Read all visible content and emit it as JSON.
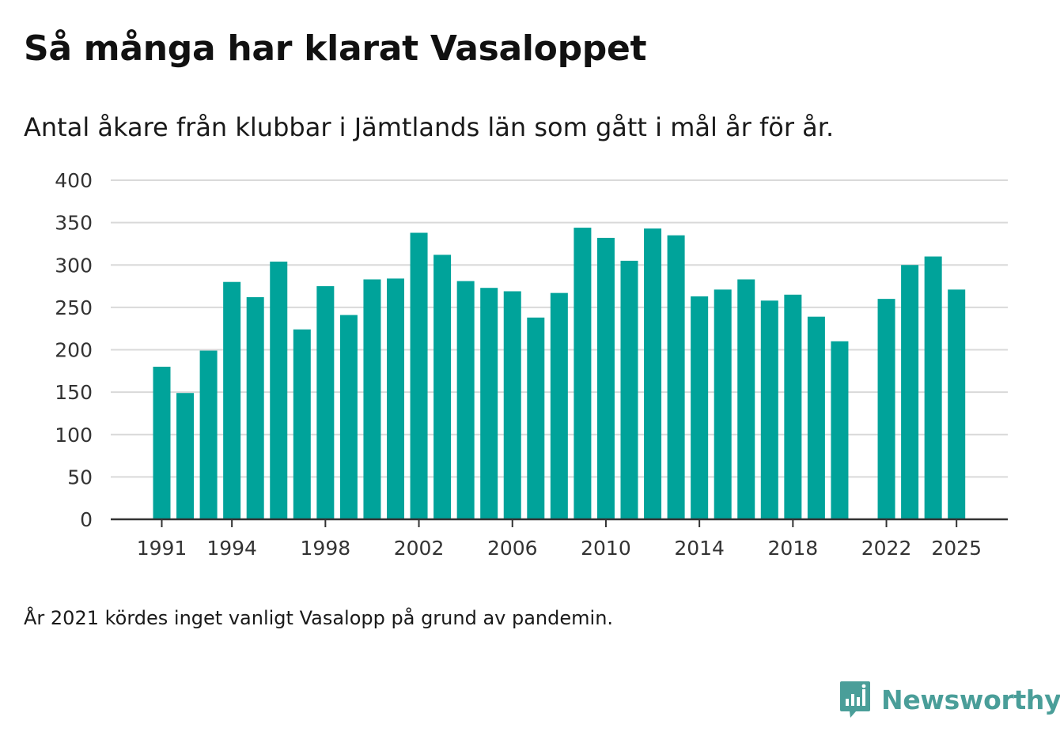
{
  "title": "Så många har klarat Vasaloppet",
  "subtitle": "Antal åkare från klubbar i Jämtlands län som gått i mål år för år.",
  "note": "År 2021 kördes inget vanligt Vasalopp på grund av pandemin.",
  "brand": {
    "name": "Newsworthy",
    "icon": "newsworthy-logo-icon",
    "color": "#4a9e99"
  },
  "colors": {
    "bar": "#00a39a",
    "grid": "#d9d9d9",
    "axis": "#333333",
    "tick_text": "#333333"
  },
  "chart_data": {
    "type": "bar",
    "title": "Så många har klarat Vasaloppet",
    "subtitle": "Antal åkare från klubbar i Jämtlands län som gått i mål år för år.",
    "xlabel": "",
    "ylabel": "",
    "ylim": [
      0,
      400
    ],
    "yticks": [
      "0",
      "50",
      "100",
      "150",
      "200",
      "250",
      "300",
      "350",
      "400"
    ],
    "xtick_labels": [
      "1991",
      "1994",
      "1998",
      "2002",
      "2006",
      "2010",
      "2014",
      "2018",
      "2022",
      "2025"
    ],
    "grid": true,
    "categories": [
      1991,
      1992,
      1993,
      1994,
      1995,
      1996,
      1997,
      1998,
      1999,
      2000,
      2001,
      2002,
      2003,
      2004,
      2005,
      2006,
      2007,
      2008,
      2009,
      2010,
      2011,
      2012,
      2013,
      2014,
      2015,
      2016,
      2017,
      2018,
      2019,
      2020,
      2021,
      2022,
      2023,
      2024,
      2025
    ],
    "values": [
      180,
      149,
      199,
      280,
      262,
      304,
      224,
      275,
      241,
      283,
      284,
      338,
      312,
      281,
      273,
      269,
      238,
      267,
      344,
      332,
      305,
      343,
      335,
      263,
      271,
      283,
      258,
      265,
      239,
      210,
      null,
      260,
      300,
      310,
      271
    ]
  }
}
